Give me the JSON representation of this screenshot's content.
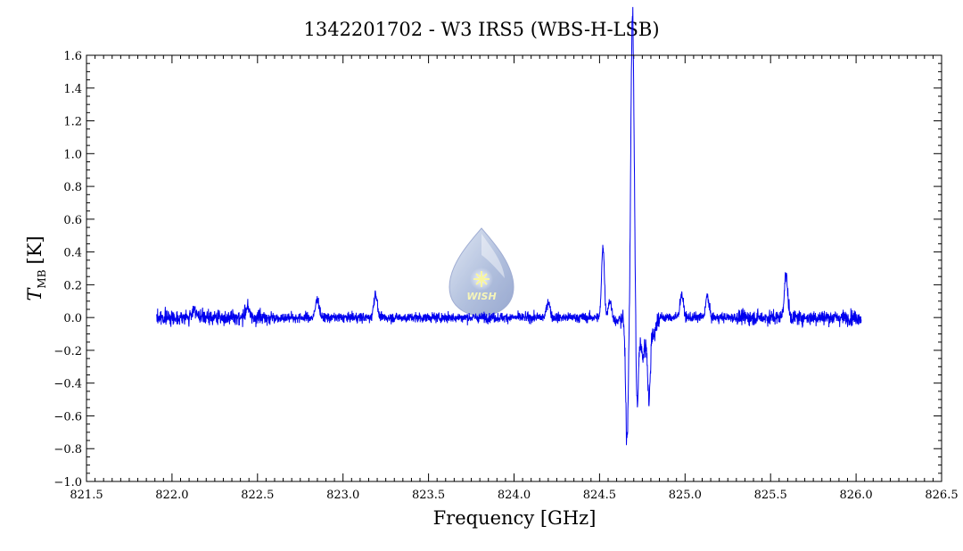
{
  "chart_data": {
    "type": "line",
    "title": "1342201702 - W3 IRS5 (WBS-H-LSB)",
    "xlabel": "Frequency [GHz]",
    "ylabel_main": "T",
    "ylabel_sub": "MB",
    "ylabel_unit": "[K]",
    "xlim": [
      821.5,
      826.5
    ],
    "ylim": [
      -1.0,
      1.6
    ],
    "xticks": [
      "821.5",
      "822.0",
      "822.5",
      "823.0",
      "823.5",
      "824.0",
      "824.5",
      "825.0",
      "825.5",
      "826.0",
      "826.5"
    ],
    "yticks": [
      "1.6",
      "1.4",
      "1.2",
      "1.0",
      "0.8",
      "0.6",
      "0.4",
      "0.2",
      "0.0",
      "-0.2",
      "-0.4",
      "-0.6",
      "-0.8",
      "-1.0"
    ],
    "grid": false,
    "series_color": "#0000ee",
    "series": [
      {
        "x_range": [
          821.91,
          826.03
        ],
        "baseline": 0.0,
        "noise_sigma": 0.015,
        "features": [
          {
            "x": 822.13,
            "y": 0.06
          },
          {
            "x": 822.44,
            "y": 0.07
          },
          {
            "x": 822.85,
            "y": 0.12
          },
          {
            "x": 823.19,
            "y": 0.15
          },
          {
            "x": 824.2,
            "y": 0.1
          },
          {
            "x": 824.52,
            "y": 0.44
          },
          {
            "x": 824.56,
            "y": 0.1
          },
          {
            "x": 824.6,
            "y": -0.03
          },
          {
            "x": 824.66,
            "y": -0.74
          },
          {
            "x": 824.69,
            "y": 1.48
          },
          {
            "x": 824.7,
            "y": 0.7
          },
          {
            "x": 824.72,
            "y": -0.56
          },
          {
            "x": 824.75,
            "y": -0.22
          },
          {
            "x": 824.77,
            "y": -0.12
          },
          {
            "x": 824.79,
            "y": -0.49
          },
          {
            "x": 824.82,
            "y": -0.1
          },
          {
            "x": 824.98,
            "y": 0.14
          },
          {
            "x": 825.13,
            "y": 0.13
          },
          {
            "x": 825.59,
            "y": 0.26
          }
        ]
      }
    ]
  },
  "watermark": {
    "label": "WISH",
    "color": "#9fb1d6"
  }
}
